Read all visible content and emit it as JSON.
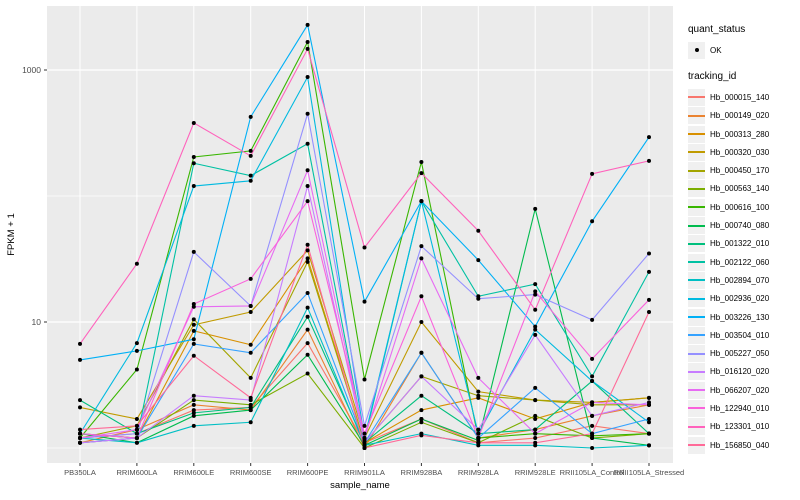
{
  "chart_data": {
    "type": "line",
    "title": "",
    "xlabel": "sample_name",
    "ylabel": "FPKM + 1",
    "x_categories": [
      "PB350LA",
      "RRIM600LA",
      "RRIM600LE",
      "RRIM600SE",
      "RRIM600PE",
      "RRIM901LA",
      "RRIM928BA",
      "RRIM928LA",
      "RRIM928LE",
      "RRII105LA_Control",
      "RRII105LA_Stressed"
    ],
    "y_scale": "log10",
    "y_axis": {
      "ticks": [
        {
          "label": "1000",
          "value": 1000
        },
        {
          "label": "10",
          "value": 10
        }
      ],
      "minor_values": [
        1,
        100
      ],
      "range": [
        0.55,
        3400
      ]
    },
    "legend": {
      "quant_status": {
        "title": "quant_status",
        "items": [
          {
            "label": "OK",
            "marker": "black-point"
          }
        ]
      },
      "tracking_id": {
        "title": "tracking_id"
      }
    },
    "point_color": "#000000",
    "colors": {
      "panel_bg": "#EBEBEB",
      "grid": "#FFFFFF",
      "axis_text": "#4D4D4D",
      "axis_title": "#000000",
      "tick_mark": "#333333",
      "legend_key_bg": "#F0F0F0"
    },
    "series": [
      {
        "name": "Hb_000015_140",
        "color": "#F8766D",
        "values": [
          1.2,
          1.3,
          2.0,
          2.1,
          6.8,
          1.1,
          1.7,
          1.1,
          1.2,
          1.5,
          1.3
        ]
      },
      {
        "name": "Hb_000149_020",
        "color": "#EA8331",
        "values": [
          1.1,
          1.4,
          2.2,
          2.0,
          8.7,
          1.0,
          5.7,
          1.2,
          1.4,
          1.8,
          2.2
        ]
      },
      {
        "name": "Hb_000313_280",
        "color": "#D89000",
        "values": [
          1.3,
          1.2,
          8.5,
          6.6,
          32,
          1.1,
          2.0,
          2.5,
          1.7,
          2.3,
          2.5
        ]
      },
      {
        "name": "Hb_000320_030",
        "color": "#C09B00",
        "values": [
          2.1,
          1.7,
          9.5,
          12,
          37,
          1.2,
          10,
          2.8,
          2.4,
          2.3,
          2.5
        ]
      },
      {
        "name": "Hb_000450_170",
        "color": "#A3A500",
        "values": [
          1.2,
          1.5,
          10.5,
          3.6,
          30,
          1.1,
          3.7,
          2.6,
          2.4,
          2.2,
          2.2
        ]
      },
      {
        "name": "Hb_000563_140",
        "color": "#7CAE00",
        "values": [
          1.1,
          1.2,
          2.4,
          2.2,
          3.9,
          1.0,
          1.6,
          1.1,
          1.8,
          1.2,
          1.3
        ]
      },
      {
        "name": "Hb_000616_100",
        "color": "#39B600",
        "values": [
          1.2,
          4.2,
          204,
          228,
          1670,
          3.5,
          186,
          1.2,
          1.3,
          1.25,
          1.3
        ]
      },
      {
        "name": "Hb_000740_080",
        "color": "#00BB4E",
        "values": [
          1.3,
          1.1,
          1.8,
          2.0,
          5.5,
          1.05,
          1.7,
          1.15,
          79,
          1.2,
          1.05
        ]
      },
      {
        "name": "Hb_001322_010",
        "color": "#00BF7D",
        "values": [
          2.4,
          1.3,
          1.9,
          2.1,
          11,
          1.1,
          2.6,
          1.3,
          1.4,
          3.4,
          1.3
        ]
      },
      {
        "name": "Hb_002122_060",
        "color": "#00C1A3",
        "values": [
          1.3,
          1.2,
          182,
          145,
          260,
          1.15,
          91,
          16,
          20,
          3.7,
          25
        ]
      },
      {
        "name": "Hb_002894_070",
        "color": "#00BFC4",
        "values": [
          1.2,
          1.1,
          1.5,
          1.6,
          13,
          1.05,
          1.3,
          1.05,
          1.05,
          1.0,
          1.05
        ]
      },
      {
        "name": "Hb_002936_020",
        "color": "#00BAE0",
        "values": [
          1.3,
          6.8,
          120,
          132,
          880,
          1.2,
          91,
          1.3,
          8.7,
          3.4,
          1.6
        ]
      },
      {
        "name": "Hb_003226_130",
        "color": "#00B0F6",
        "values": [
          5.0,
          5.9,
          7.3,
          425,
          2280,
          14.5,
          91,
          31,
          9.2,
          63,
          293
        ]
      },
      {
        "name": "Hb_003504_010",
        "color": "#35A2FF",
        "values": [
          1.1,
          1.2,
          6.7,
          5.7,
          17,
          1.1,
          5.7,
          1.2,
          3.0,
          1.3,
          1.7
        ]
      },
      {
        "name": "Hb_005227_050",
        "color": "#9590FF",
        "values": [
          1.2,
          1.3,
          36,
          13.4,
          450,
          1.5,
          40,
          15.3,
          16.5,
          10.4,
          35
        ]
      },
      {
        "name": "Hb_016120_020",
        "color": "#C77CFF",
        "values": [
          1.1,
          1.2,
          2.6,
          2.4,
          120,
          1.1,
          3.7,
          1.4,
          7.9,
          1.8,
          2.3
        ]
      },
      {
        "name": "Hb_066207_020",
        "color": "#E76BF3",
        "values": [
          1.2,
          1.4,
          13.2,
          13.4,
          160,
          1.2,
          32,
          3.6,
          1.3,
          2.3,
          2.2
        ]
      },
      {
        "name": "Hb_122940_010",
        "color": "#FA62DB",
        "values": [
          1.3,
          1.2,
          13.9,
          22,
          91,
          1.3,
          16,
          1.2,
          17.5,
          5.1,
          15
        ]
      },
      {
        "name": "Hb_123301_010",
        "color": "#FF62BC",
        "values": [
          6.7,
          29,
          380,
          208,
          1470,
          39,
          152,
          53,
          12.5,
          150,
          190
        ]
      },
      {
        "name": "Hb_156850_040",
        "color": "#FF6A98",
        "values": [
          1.4,
          1.5,
          5.4,
          2.5,
          41,
          1.0,
          1.26,
          1.1,
          1.1,
          1.3,
          12
        ]
      }
    ]
  }
}
